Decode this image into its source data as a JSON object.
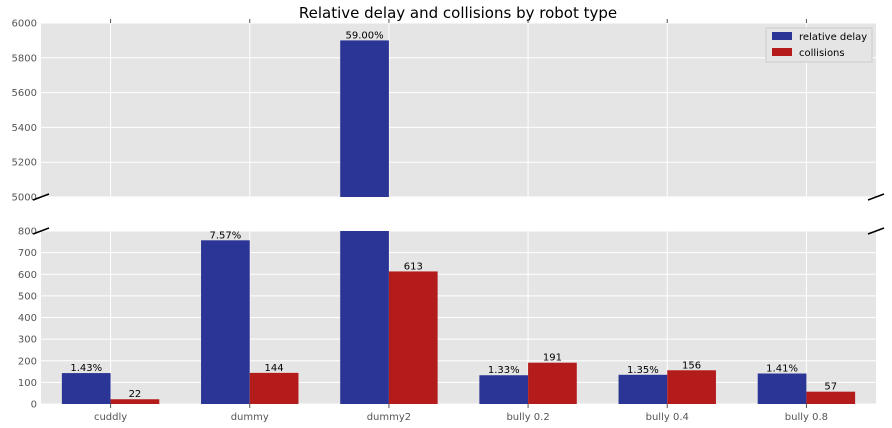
{
  "chart_data": {
    "type": "bar",
    "title": "Relative delay and collisions by robot type",
    "categories": [
      "cuddly",
      "dummy",
      "dummy2",
      "bully 0.2",
      "bully 0.4",
      "bully 0.8"
    ],
    "series": [
      {
        "name": "relative delay",
        "values": [
          143,
          757,
          5900,
          133,
          135,
          141
        ],
        "labels": [
          "1.43%",
          "7.57%",
          "59.00%",
          "1.33%",
          "1.35%",
          "1.41%"
        ],
        "color": "#2b3595"
      },
      {
        "name": "collisions",
        "values": [
          22,
          144,
          613,
          191,
          156,
          57
        ],
        "labels": [
          "22",
          "144",
          "613",
          "191",
          "156",
          "57"
        ],
        "color": "#b41c1c"
      }
    ],
    "axis_break": true,
    "upper_ylim": [
      5000,
      6000
    ],
    "upper_yticks": [
      "5000",
      "5200",
      "5400",
      "5600",
      "5800",
      "6000"
    ],
    "lower_ylim": [
      0,
      800
    ],
    "lower_yticks": [
      "0",
      "100",
      "200",
      "300",
      "400",
      "500",
      "600",
      "700",
      "800"
    ],
    "grid": true,
    "legend_position": "top-right",
    "background": "#e5e5e5",
    "grid_color": "#ffffff"
  }
}
